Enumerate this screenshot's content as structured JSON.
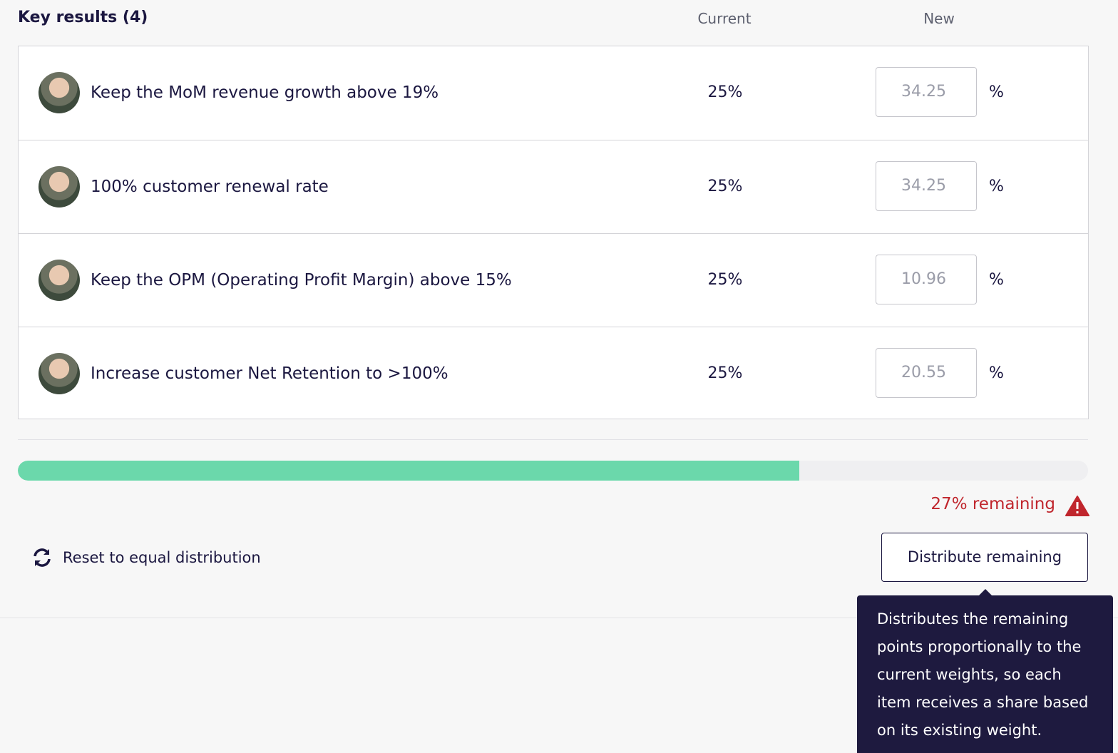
{
  "header": {
    "title": "Key results (4)",
    "columns": [
      "Current",
      "New"
    ]
  },
  "rows": [
    {
      "name": "Keep the MoM revenue growth above 19%",
      "current": "25%",
      "new": "34.25",
      "unit": "%"
    },
    {
      "name": "100% customer renewal rate",
      "current": "25%",
      "new": "34.25",
      "unit": "%"
    },
    {
      "name": "Keep the OPM (Operating Profit Margin) above 15%",
      "current": "25%",
      "new": "10.96",
      "unit": "%"
    },
    {
      "name": "Increase customer Net Retention to >100%",
      "current": "25%",
      "new": "20.55",
      "unit": "%"
    }
  ],
  "progress": {
    "filled": 73,
    "color": "#6bd8ab",
    "status": "27% remaining"
  },
  "actions": {
    "reset": "Reset to equal distribution",
    "distribute": "Distribute remaining"
  },
  "tooltip": "Distributes the remaining points proportionally to the current weights, so each item receives a share based on its existing weight."
}
